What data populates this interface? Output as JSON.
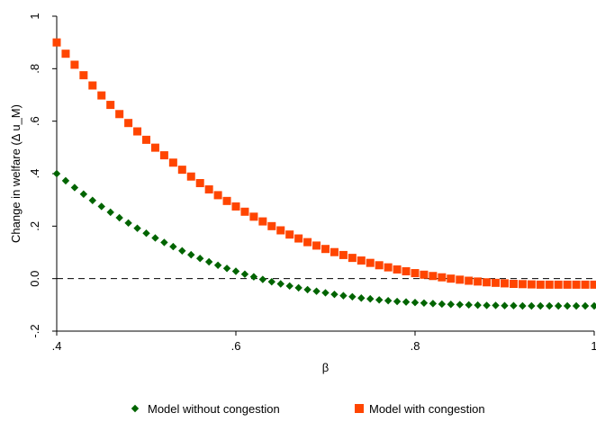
{
  "chart_data": {
    "type": "scatter",
    "title": "",
    "xlabel": "β",
    "ylabel": "Change in welfare (Δ u_M)",
    "xlim": [
      0.4,
      1.0
    ],
    "ylim": [
      -0.2,
      1.0
    ],
    "xticks": [
      0.4,
      0.6,
      0.8,
      1.0
    ],
    "xtick_labels": [
      ".4",
      ".6",
      ".8",
      "1"
    ],
    "yticks": [
      -0.2,
      0.0,
      0.2,
      0.4,
      0.6,
      0.8,
      1.0
    ],
    "ytick_labels": [
      "-.2",
      "0.0",
      ".2",
      ".4",
      ".6",
      ".8",
      "1"
    ],
    "reference_line": {
      "y": 0,
      "style": "dashed"
    },
    "grid": false,
    "legend_position": "bottom",
    "x": [
      0.4,
      0.41,
      0.42,
      0.43,
      0.44,
      0.45,
      0.46,
      0.47,
      0.48,
      0.49,
      0.5,
      0.51,
      0.52,
      0.53,
      0.54,
      0.55,
      0.56,
      0.57,
      0.58,
      0.59,
      0.6,
      0.61,
      0.62,
      0.63,
      0.64,
      0.65,
      0.66,
      0.67,
      0.68,
      0.69,
      0.7,
      0.71,
      0.72,
      0.73,
      0.74,
      0.75,
      0.76,
      0.77,
      0.78,
      0.79,
      0.8,
      0.81,
      0.82,
      0.83,
      0.84,
      0.85,
      0.86,
      0.87,
      0.88,
      0.89,
      0.9,
      0.91,
      0.92,
      0.93,
      0.94,
      0.95,
      0.96,
      0.97,
      0.98,
      0.99,
      1.0
    ],
    "series": [
      {
        "name": "Model without congestion",
        "color": "#006400",
        "marker": "diamond",
        "values": [
          0.4,
          0.373,
          0.347,
          0.322,
          0.298,
          0.275,
          0.253,
          0.232,
          0.212,
          0.192,
          0.173,
          0.155,
          0.138,
          0.122,
          0.106,
          0.091,
          0.077,
          0.064,
          0.051,
          0.039,
          0.028,
          0.017,
          0.007,
          -0.003,
          -0.012,
          -0.02,
          -0.028,
          -0.035,
          -0.042,
          -0.048,
          -0.054,
          -0.06,
          -0.065,
          -0.069,
          -0.074,
          -0.077,
          -0.081,
          -0.084,
          -0.087,
          -0.089,
          -0.091,
          -0.093,
          -0.095,
          -0.097,
          -0.098,
          -0.099,
          -0.1,
          -0.101,
          -0.102,
          -0.102,
          -0.103,
          -0.103,
          -0.104,
          -0.104,
          -0.104,
          -0.104,
          -0.104,
          -0.104,
          -0.104,
          -0.104,
          -0.104
        ]
      },
      {
        "name": "Model with congestion",
        "color": "#ff4500",
        "marker": "square",
        "values": [
          0.9,
          0.857,
          0.815,
          0.775,
          0.736,
          0.698,
          0.662,
          0.627,
          0.593,
          0.561,
          0.529,
          0.499,
          0.47,
          0.442,
          0.415,
          0.389,
          0.364,
          0.34,
          0.318,
          0.296,
          0.275,
          0.255,
          0.236,
          0.218,
          0.2,
          0.184,
          0.168,
          0.153,
          0.139,
          0.126,
          0.113,
          0.101,
          0.09,
          0.079,
          0.069,
          0.06,
          0.051,
          0.043,
          0.035,
          0.028,
          0.021,
          0.015,
          0.01,
          0.005,
          0.0,
          -0.004,
          -0.008,
          -0.011,
          -0.014,
          -0.016,
          -0.018,
          -0.02,
          -0.021,
          -0.022,
          -0.023,
          -0.023,
          -0.023,
          -0.023,
          -0.023,
          -0.023,
          -0.023
        ]
      }
    ]
  }
}
